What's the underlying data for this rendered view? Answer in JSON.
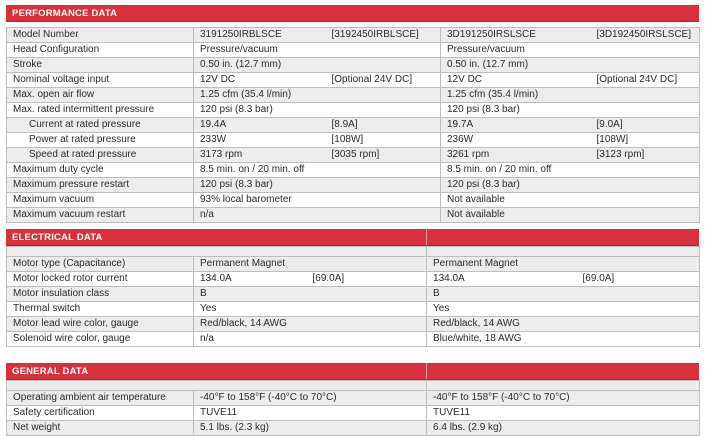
{
  "performance": {
    "title": "PERFORMANCE DATA",
    "rows": [
      {
        "label": "Model Number",
        "a1": "3191250IRBLSCE",
        "a2": "[3192450IRBLSCE]",
        "b1": "3D191250IRSLSCE",
        "b2": "[3D192450IRSLSCE]",
        "shade": true
      },
      {
        "label": "Head Configuration",
        "a1": "Pressure/vacuum",
        "a2": "",
        "b1": "Pressure/vacuum",
        "b2": "",
        "shade": false
      },
      {
        "label": "Stroke",
        "a1": "0.50 in. (12.7 mm)",
        "a2": "",
        "b1": "0.50 in. (12.7 mm)",
        "b2": "",
        "shade": true
      },
      {
        "label": "Nominal voltage input",
        "a1": "12V DC",
        "a2": "[Optional 24V DC]",
        "b1": "12V DC",
        "b2": "[Optional 24V DC]",
        "shade": false
      },
      {
        "label": "Max. open air flow",
        "a1": "1.25 cfm (35.4 l/min)",
        "a2": "",
        "b1": "1.25 cfm (35.4 l/min)",
        "b2": "",
        "shade": true
      },
      {
        "label": "Max. rated intermittent pressure",
        "a1": "120 psi (8.3 bar)",
        "a2": "",
        "b1": "120 psi (8.3 bar)",
        "b2": "",
        "shade": false
      },
      {
        "label": "Current at rated pressure",
        "a1": "19.4A",
        "a2": "[8.9A]",
        "b1": "19.7A",
        "b2": "[9.0A]",
        "shade": true,
        "indent": true
      },
      {
        "label": "Power at rated pressure",
        "a1": "233W",
        "a2": "[108W]",
        "b1": "236W",
        "b2": "[108W]",
        "shade": false,
        "indent": true
      },
      {
        "label": "Speed at rated pressure",
        "a1": "3173 rpm",
        "a2": "[3035 rpm]",
        "b1": "3261 rpm",
        "b2": "[3123 rpm]",
        "shade": true,
        "indent": true
      },
      {
        "label": "Maximum duty cycle",
        "a1": "8.5 min. on / 20 min. off",
        "a2": "",
        "b1": "8.5 min. on / 20 min. off",
        "b2": "",
        "shade": false
      },
      {
        "label": "Maximum pressure restart",
        "a1": "120 psi (8.3 bar)",
        "a2": "",
        "b1": "120 psi (8.3 bar)",
        "b2": "",
        "shade": true
      },
      {
        "label": "Maximum vacuum",
        "a1": "93% local barometer",
        "a2": "",
        "b1": "Not available",
        "b2": "",
        "shade": false
      },
      {
        "label": "Maximum vacuum restart",
        "a1": "n/a",
        "a2": "",
        "b1": "Not available",
        "b2": "",
        "shade": true
      }
    ]
  },
  "electrical": {
    "title": "ELECTRICAL DATA",
    "rows": [
      {
        "label": "Motor type (Capacitance)",
        "a1": "Permanent Magnet",
        "a2": "",
        "b1": "Permanent Magnet",
        "b2": "",
        "shade": true
      },
      {
        "label": "Motor locked rotor current",
        "a1": "134.0A",
        "a2": "[69.0A]",
        "b1": "134.0A",
        "b2": "[69.0A]",
        "shade": false
      },
      {
        "label": "Motor insulation class",
        "a1": "B",
        "a2": "",
        "b1": "B",
        "b2": "",
        "shade": true
      },
      {
        "label": "Thermal switch",
        "a1": "Yes",
        "a2": "",
        "b1": "Yes",
        "b2": "",
        "shade": false
      },
      {
        "label": "Motor lead wire color, gauge",
        "a1": "Red/black, 14 AWG",
        "a2": "",
        "b1": "Red/black, 14 AWG",
        "b2": "",
        "shade": true
      },
      {
        "label": "Solenoid wire color, gauge",
        "a1": "n/a",
        "a2": "",
        "b1": "Blue/white, 18 AWG",
        "b2": "",
        "shade": false
      }
    ]
  },
  "general": {
    "title": "GENERAL DATA",
    "rows": [
      {
        "label": "Operating ambient air temperature",
        "a1": "-40°F to 158°F (-40°C to 70°C)",
        "a2": "",
        "b1": "-40°F to 158°F (-40°C to 70°C)",
        "b2": "",
        "shade": true
      },
      {
        "label": "Safety certification",
        "a1": "TUVE11",
        "a2": "",
        "b1": "TUVE11",
        "b2": "",
        "shade": false
      },
      {
        "label": "Net weight",
        "a1": "5.1 lbs. (2.3 kg)",
        "a2": "",
        "b1": "6.4 lbs. (2.9 kg)",
        "b2": "",
        "shade": true
      }
    ]
  }
}
